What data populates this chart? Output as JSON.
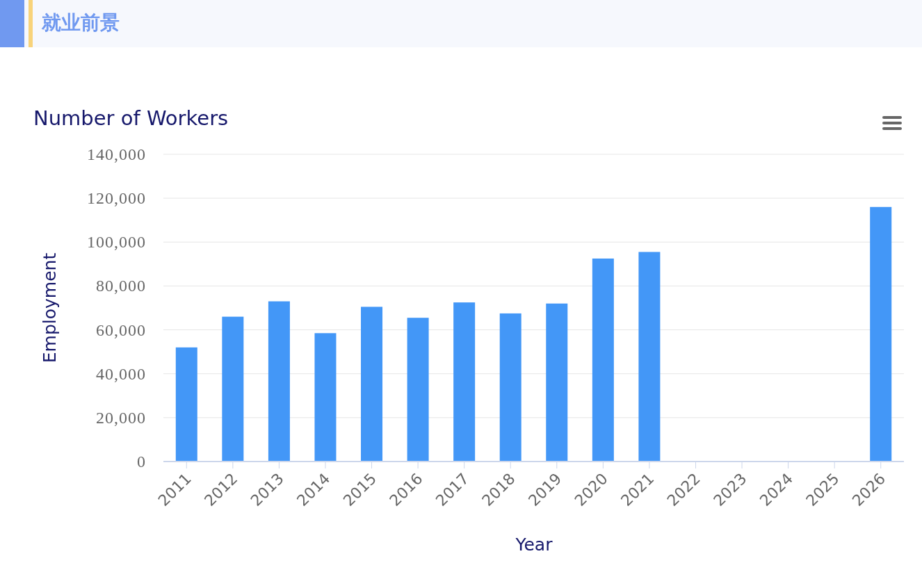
{
  "chart_data": {
    "type": "bar",
    "title": "就业前景",
    "subtitle": "Number of Workers",
    "xlabel": "Year",
    "ylabel": "Employment",
    "categories": [
      "2011",
      "2012",
      "2013",
      "2014",
      "2015",
      "2016",
      "2017",
      "2018",
      "2019",
      "2020",
      "2021",
      "2022",
      "2023",
      "2024",
      "2025",
      "2026"
    ],
    "values": [
      52000,
      66000,
      73000,
      58500,
      70500,
      65500,
      72500,
      67500,
      72000,
      92500,
      95500,
      null,
      null,
      null,
      null,
      116000
    ],
    "color": "#4397f7",
    "ylim": [
      0,
      140000
    ],
    "yticks": [
      0,
      {
        "value": 20000,
        "label": "20,000"
      },
      {
        "value": 40000,
        "label": "40,000"
      },
      {
        "value": 60000,
        "label": "60,000"
      },
      {
        "value": 80000,
        "label": "80,000"
      },
      {
        "value": 100000,
        "label": "100,000"
      },
      {
        "value": 120000,
        "label": "120,000"
      },
      {
        "value": 140000,
        "label": "140,000"
      }
    ],
    "grid": "y"
  }
}
